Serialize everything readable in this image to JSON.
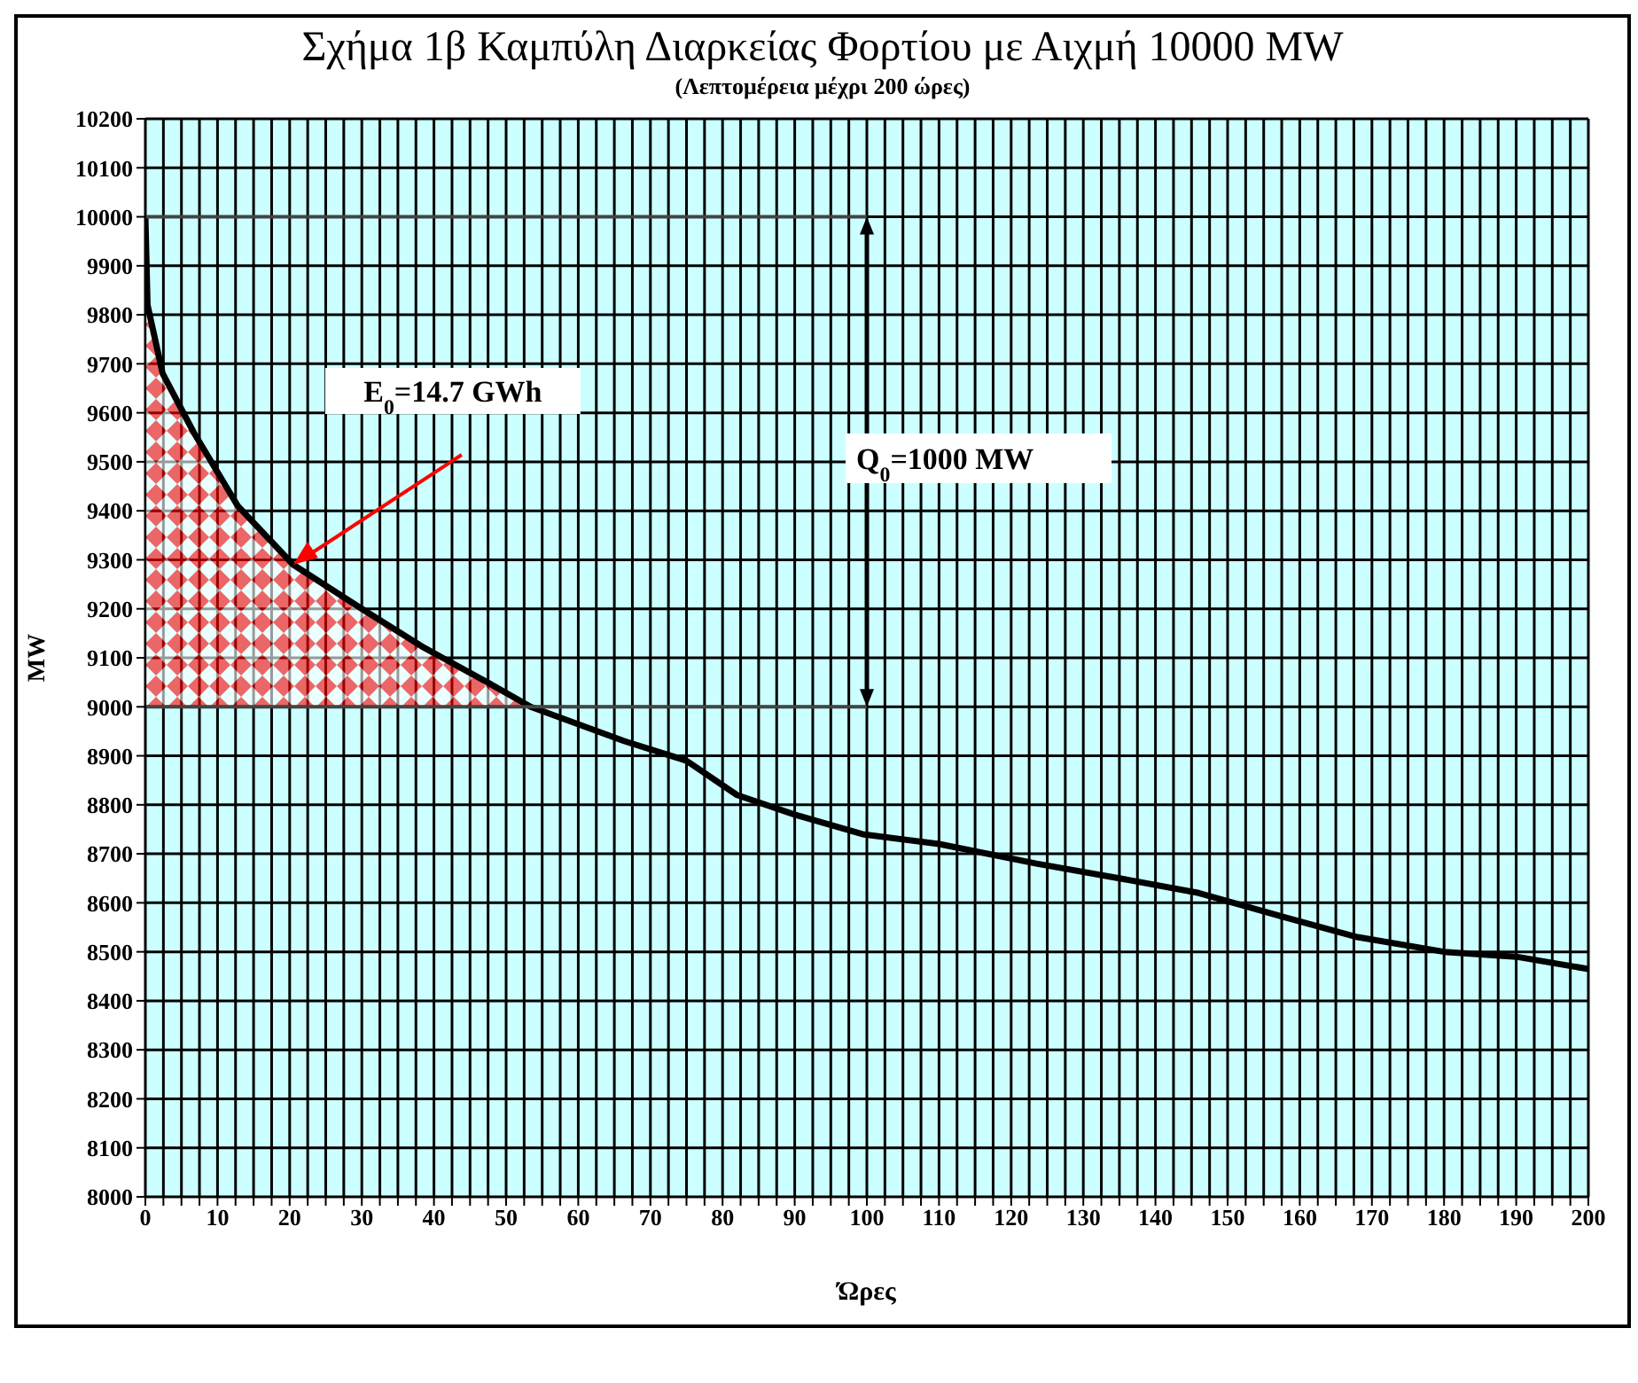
{
  "chart_data": {
    "type": "line",
    "title": "Σχήμα 1β Καμπύλη Διαρκείας Φορτίου με Αιχμή 10000 MW",
    "subtitle": "(Λεπτομέρεια μέχρι 200 ώρες)",
    "xlabel": "Ώρες",
    "ylabel": "MW",
    "series": [
      {
        "type": "area",
        "color": "#ff0000",
        "x": [
          0,
          0.3,
          2.4,
          6.7,
          12.8,
          20.5,
          30,
          38.7,
          47.4,
          53.4
        ],
        "values": [
          10000,
          9820,
          9680,
          9560,
          9410,
          9290,
          9200,
          9120,
          9050,
          9000
        ]
      },
      {
        "color": "#000000",
        "x": [
          0,
          0.3,
          2.4,
          6.7,
          12.8,
          20.5,
          30,
          38.7,
          47.4,
          53.4,
          66.4,
          75,
          82,
          90,
          99.4,
          110,
          123.5,
          135,
          146,
          158,
          168,
          180,
          190,
          200
        ],
        "values": [
          10000,
          9820,
          9680,
          9560,
          9410,
          9290,
          9200,
          9120,
          9050,
          9000,
          8930,
          8890,
          8820,
          8780,
          8740,
          8720,
          8680,
          8650,
          8620,
          8570,
          8530,
          8500,
          8490,
          8465
        ]
      }
    ],
    "xlim": [
      0,
      200
    ],
    "ylim": [
      8000,
      10200
    ],
    "xticks": [
      0,
      {
        "value": 2.5,
        "label": null
      },
      {
        "value": 5,
        "label": null
      },
      {
        "value": 7.5,
        "label": null
      },
      10,
      {
        "value": 12.5,
        "label": null
      },
      {
        "value": 15,
        "label": null
      },
      {
        "value": 17.5,
        "label": null
      },
      20,
      {
        "value": 22.5,
        "label": null
      },
      {
        "value": 25,
        "label": null
      },
      {
        "value": 27.5,
        "label": null
      },
      30,
      {
        "value": 32.5,
        "label": null
      },
      {
        "value": 35,
        "label": null
      },
      {
        "value": 37.5,
        "label": null
      },
      40,
      {
        "value": 42.5,
        "label": null
      },
      {
        "value": 45,
        "label": null
      },
      {
        "value": 47.5,
        "label": null
      },
      50,
      {
        "value": 52.5,
        "label": null
      },
      {
        "value": 55,
        "label": null
      },
      {
        "value": 57.5,
        "label": null
      },
      60,
      {
        "value": 62.5,
        "label": null
      },
      {
        "value": 65,
        "label": null
      },
      {
        "value": 67.5,
        "label": null
      },
      70,
      {
        "value": 72.5,
        "label": null
      },
      {
        "value": 75,
        "label": null
      },
      {
        "value": 77.5,
        "label": null
      },
      80,
      {
        "value": 82.5,
        "label": null
      },
      {
        "value": 85,
        "label": null
      },
      {
        "value": 87.5,
        "label": null
      },
      90,
      {
        "value": 92.5,
        "label": null
      },
      {
        "value": 95,
        "label": null
      },
      {
        "value": 97.5,
        "label": null
      },
      100,
      {
        "value": 102.5,
        "label": null
      },
      {
        "value": 105,
        "label": null
      },
      {
        "value": 107.5,
        "label": null
      },
      110,
      {
        "value": 112.5,
        "label": null
      },
      {
        "value": 115,
        "label": null
      },
      {
        "value": 117.5,
        "label": null
      },
      120,
      {
        "value": 122.5,
        "label": null
      },
      {
        "value": 125,
        "label": null
      },
      {
        "value": 127.5,
        "label": null
      },
      130,
      {
        "value": 132.5,
        "label": null
      },
      {
        "value": 135,
        "label": null
      },
      {
        "value": 137.5,
        "label": null
      },
      140,
      {
        "value": 142.5,
        "label": null
      },
      {
        "value": 145,
        "label": null
      },
      {
        "value": 147.5,
        "label": null
      },
      150,
      {
        "value": 152.5,
        "label": null
      },
      {
        "value": 155,
        "label": null
      },
      {
        "value": 157.5,
        "label": null
      },
      160,
      {
        "value": 162.5,
        "label": null
      },
      {
        "value": 165,
        "label": null
      },
      {
        "value": 167.5,
        "label": null
      },
      170,
      {
        "value": 172.5,
        "label": null
      },
      {
        "value": 175,
        "label": null
      },
      {
        "value": 177.5,
        "label": null
      },
      180,
      {
        "value": 182.5,
        "label": null
      },
      {
        "value": 185,
        "label": null
      },
      {
        "value": 187.5,
        "label": null
      },
      190,
      {
        "value": 192.5,
        "label": null
      },
      {
        "value": 195,
        "label": null
      },
      {
        "value": 197.5,
        "label": null
      },
      200
    ],
    "yticks": [
      8000,
      8100,
      8200,
      8300,
      8400,
      8500,
      8600,
      8700,
      8800,
      8900,
      9000,
      9100,
      9200,
      9300,
      9400,
      9500,
      9600,
      9700,
      9800,
      9900,
      10000,
      10100,
      10200
    ],
    "grid": true,
    "ref_lines": [
      {
        "axis": "y",
        "value": 10000
      },
      {
        "axis": "y",
        "value": 9000
      }
    ],
    "annotations": [
      "E$_{0}$=14.7 GWh",
      "Q$_{0}$=1000 MW"
    ]
  }
}
